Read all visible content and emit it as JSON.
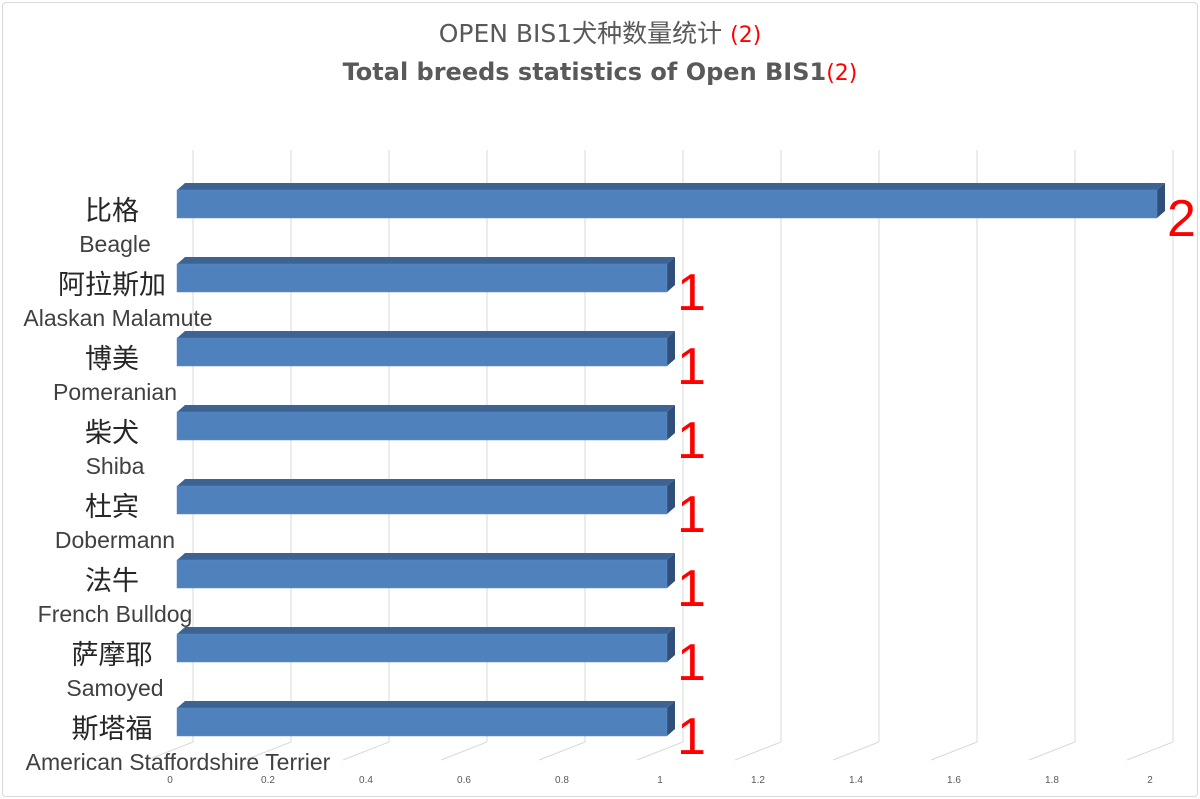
{
  "chart_data": {
    "type": "bar",
    "orientation": "horizontal",
    "style": "3d",
    "title": "OPEN BIS1犬种数量统计",
    "title_note": "(2)",
    "subtitle": "Total breeds statistics of  Open BIS1",
    "subtitle_note": "(2)",
    "categories": [
      {
        "zh": "比格",
        "en": "Beagle"
      },
      {
        "zh": "阿拉斯加",
        "en": "Alaskan Malamute"
      },
      {
        "zh": "博美",
        "en": "Pomeranian"
      },
      {
        "zh": "柴犬",
        "en": "Shiba"
      },
      {
        "zh": "杜宾",
        "en": "Dobermann"
      },
      {
        "zh": "法牛",
        "en": "French Bulldog"
      },
      {
        "zh": "萨摩耶",
        "en": "Samoyed"
      },
      {
        "zh": "斯塔福",
        "en": "American Staffordshire Terrier"
      }
    ],
    "values": [
      2,
      1,
      1,
      1,
      1,
      1,
      1,
      1
    ],
    "data_labels": [
      "2",
      "1",
      "1",
      "1",
      "1",
      "1",
      "1",
      "1"
    ],
    "xlim": [
      0,
      2
    ],
    "xticks": [
      "0",
      "0.2",
      "0.4",
      "0.6",
      "0.8",
      "1",
      "1.2",
      "1.4",
      "1.6",
      "1.8",
      "2"
    ],
    "grid": true,
    "colors": {
      "bar_front": "#4f81bd",
      "bar_top": "#3d6393",
      "bar_side": "#2f4f7a",
      "data_label": "#ff0000",
      "grid": "#d9d9d9"
    }
  }
}
